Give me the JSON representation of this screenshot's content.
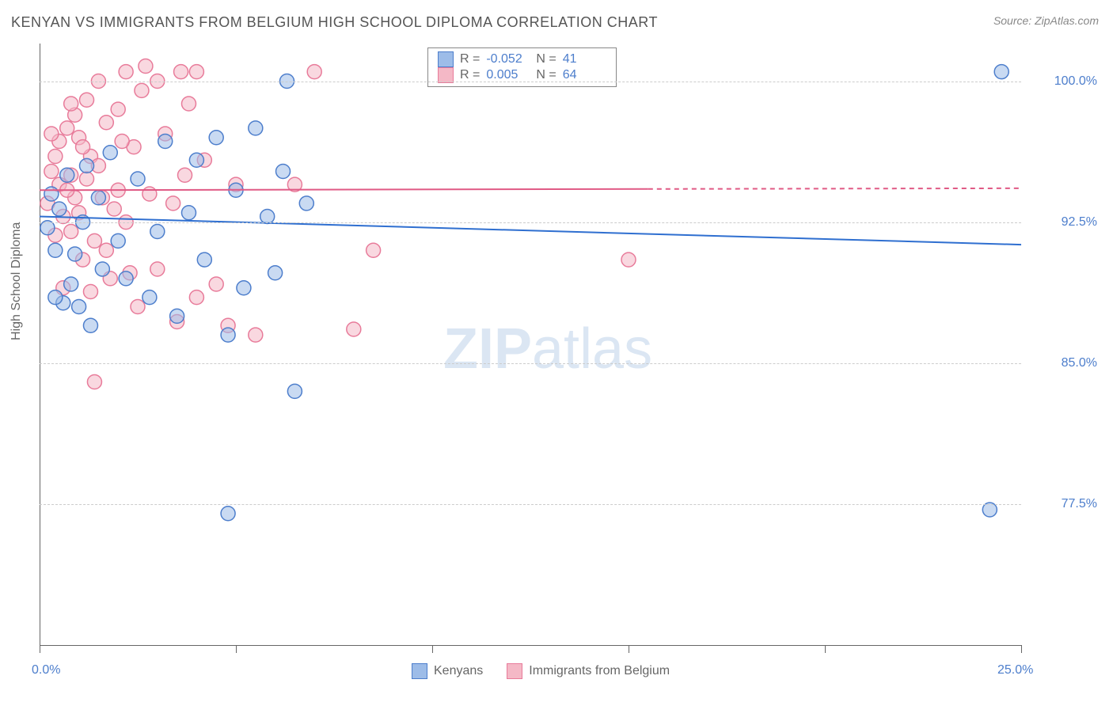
{
  "title": "KENYAN VS IMMIGRANTS FROM BELGIUM HIGH SCHOOL DIPLOMA CORRELATION CHART",
  "source": "Source: ZipAtlas.com",
  "y_axis_label": "High School Diploma",
  "watermark_bold": "ZIP",
  "watermark_light": "atlas",
  "chart": {
    "type": "scatter",
    "xlim": [
      0,
      25
    ],
    "ylim": [
      70,
      102
    ],
    "y_ticks": [
      77.5,
      85.0,
      92.5,
      100.0
    ],
    "y_tick_labels": [
      "77.5%",
      "85.0%",
      "92.5%",
      "100.0%"
    ],
    "x_ticks": [
      0,
      5,
      10,
      15,
      20,
      25
    ],
    "x_labels_shown": {
      "0": "0.0%",
      "25": "25.0%"
    },
    "background_color": "#ffffff",
    "grid_color": "#cccccc",
    "axis_color": "#666666",
    "marker_radius": 9,
    "marker_opacity": 0.55,
    "trend_line_width": 2,
    "series": [
      {
        "name": "Kenyans",
        "color_fill": "#9dbce8",
        "color_stroke": "#4d7ecc",
        "r_value": "-0.052",
        "n_value": "41",
        "trend": {
          "y_start": 92.8,
          "y_end": 91.3,
          "x_solid_end": 25,
          "color": "#2f6fd0"
        },
        "points": [
          [
            0.2,
            92.2
          ],
          [
            0.3,
            94.0
          ],
          [
            0.4,
            91.0
          ],
          [
            0.5,
            93.2
          ],
          [
            0.6,
            88.2
          ],
          [
            0.7,
            95.0
          ],
          [
            0.8,
            89.2
          ],
          [
            0.9,
            90.8
          ],
          [
            1.0,
            88.0
          ],
          [
            1.1,
            92.5
          ],
          [
            1.2,
            95.5
          ],
          [
            1.3,
            87.0
          ],
          [
            1.5,
            93.8
          ],
          [
            1.6,
            90.0
          ],
          [
            1.8,
            96.2
          ],
          [
            2.0,
            91.5
          ],
          [
            2.2,
            89.5
          ],
          [
            2.5,
            94.8
          ],
          [
            2.8,
            88.5
          ],
          [
            3.0,
            92.0
          ],
          [
            3.2,
            96.8
          ],
          [
            3.5,
            87.5
          ],
          [
            3.8,
            93.0
          ],
          [
            4.0,
            95.8
          ],
          [
            4.2,
            90.5
          ],
          [
            4.5,
            97.0
          ],
          [
            4.8,
            86.5
          ],
          [
            5.0,
            94.2
          ],
          [
            5.2,
            89.0
          ],
          [
            5.5,
            97.5
          ],
          [
            5.8,
            92.8
          ],
          [
            6.0,
            89.8
          ],
          [
            6.2,
            95.2
          ],
          [
            6.5,
            83.5
          ],
          [
            6.8,
            93.5
          ],
          [
            4.8,
            77.0
          ],
          [
            10.5,
            100.5
          ],
          [
            6.3,
            100.0
          ],
          [
            24.5,
            100.5
          ],
          [
            24.2,
            77.2
          ],
          [
            0.4,
            88.5
          ]
        ]
      },
      {
        "name": "Immigrants from Belgium",
        "color_fill": "#f4b8c6",
        "color_stroke": "#e87b9a",
        "r_value": "0.005",
        "n_value": "64",
        "trend": {
          "y_start": 94.2,
          "y_end": 94.3,
          "x_solid_end": 15.5,
          "color": "#e05a85"
        },
        "points": [
          [
            0.2,
            93.5
          ],
          [
            0.3,
            95.2
          ],
          [
            0.4,
            91.8
          ],
          [
            0.5,
            94.5
          ],
          [
            0.5,
            96.8
          ],
          [
            0.6,
            89.0
          ],
          [
            0.7,
            97.5
          ],
          [
            0.8,
            92.0
          ],
          [
            0.8,
            95.0
          ],
          [
            0.9,
            98.2
          ],
          [
            1.0,
            93.0
          ],
          [
            1.0,
            97.0
          ],
          [
            1.1,
            90.5
          ],
          [
            1.2,
            94.8
          ],
          [
            1.2,
            99.0
          ],
          [
            1.3,
            96.0
          ],
          [
            1.4,
            91.5
          ],
          [
            1.5,
            100.0
          ],
          [
            1.5,
            95.5
          ],
          [
            1.6,
            93.8
          ],
          [
            1.7,
            97.8
          ],
          [
            1.8,
            89.5
          ],
          [
            2.0,
            98.5
          ],
          [
            2.0,
            94.2
          ],
          [
            2.2,
            100.5
          ],
          [
            2.2,
            92.5
          ],
          [
            2.4,
            96.5
          ],
          [
            2.5,
            88.0
          ],
          [
            2.6,
            99.5
          ],
          [
            2.8,
            94.0
          ],
          [
            3.0,
            100.0
          ],
          [
            3.0,
            90.0
          ],
          [
            3.2,
            97.2
          ],
          [
            3.4,
            93.5
          ],
          [
            3.5,
            87.2
          ],
          [
            3.8,
            98.8
          ],
          [
            4.0,
            100.5
          ],
          [
            4.2,
            95.8
          ],
          [
            4.5,
            89.2
          ],
          [
            4.8,
            87.0
          ],
          [
            5.0,
            94.5
          ],
          [
            5.5,
            86.5
          ],
          [
            2.7,
            100.8
          ],
          [
            3.6,
            100.5
          ],
          [
            7.0,
            100.5
          ],
          [
            0.3,
            97.2
          ],
          [
            0.6,
            92.8
          ],
          [
            1.3,
            88.8
          ],
          [
            1.1,
            96.5
          ],
          [
            0.9,
            93.8
          ],
          [
            1.7,
            91.0
          ],
          [
            2.3,
            89.8
          ],
          [
            0.4,
            96.0
          ],
          [
            0.8,
            98.8
          ],
          [
            1.4,
            84.0
          ],
          [
            8.5,
            91.0
          ],
          [
            6.5,
            94.5
          ],
          [
            8.0,
            86.8
          ],
          [
            15.0,
            90.5
          ],
          [
            4.0,
            88.5
          ],
          [
            2.1,
            96.8
          ],
          [
            1.9,
            93.2
          ],
          [
            0.7,
            94.2
          ],
          [
            3.7,
            95.0
          ]
        ]
      }
    ]
  },
  "legend_top": {
    "r_label": "R =",
    "n_label": "N ="
  },
  "legend_bottom": [
    {
      "label": "Kenyans",
      "fill": "#9dbce8",
      "stroke": "#4d7ecc"
    },
    {
      "label": "Immigrants from Belgium",
      "fill": "#f4b8c6",
      "stroke": "#e87b9a"
    }
  ]
}
